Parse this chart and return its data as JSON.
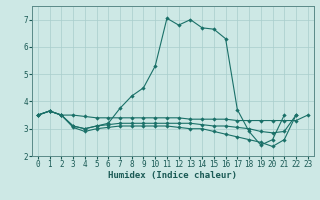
{
  "xlabel": "Humidex (Indice chaleur)",
  "bg_color": "#cde8e5",
  "grid_color": "#a8cecc",
  "line_color": "#1a7068",
  "xlim": [
    -0.5,
    23.5
  ],
  "ylim": [
    2.0,
    7.5
  ],
  "xticks": [
    0,
    1,
    2,
    3,
    4,
    5,
    6,
    7,
    8,
    9,
    10,
    11,
    12,
    13,
    14,
    15,
    16,
    17,
    18,
    19,
    20,
    21,
    22,
    23
  ],
  "yticks": [
    2,
    3,
    4,
    5,
    6,
    7
  ],
  "lines": [
    {
      "x": [
        0,
        1,
        2,
        3,
        4,
        5,
        6,
        7,
        8,
        9,
        10,
        11,
        12,
        13,
        14,
        15,
        16,
        17,
        18,
        19,
        20,
        21,
        22
      ],
      "y": [
        3.5,
        3.65,
        3.5,
        3.1,
        3.0,
        3.1,
        3.2,
        3.75,
        4.2,
        4.5,
        5.3,
        7.05,
        6.8,
        7.0,
        6.7,
        6.65,
        6.3,
        3.7,
        2.9,
        2.4,
        2.6,
        3.5,
        null
      ]
    },
    {
      "x": [
        0,
        1,
        2,
        3,
        4,
        5,
        6,
        7,
        8,
        9,
        10,
        11,
        12,
        13,
        14,
        15,
        16,
        17,
        18,
        19,
        20,
        21,
        22,
        23
      ],
      "y": [
        3.5,
        3.65,
        3.5,
        3.5,
        3.45,
        3.4,
        3.4,
        3.4,
        3.4,
        3.4,
        3.4,
        3.4,
        3.4,
        3.35,
        3.35,
        3.35,
        3.35,
        3.3,
        3.3,
        3.3,
        3.3,
        3.3,
        3.3,
        3.5
      ]
    },
    {
      "x": [
        0,
        1,
        2,
        3,
        4,
        5,
        6,
        7,
        8,
        9,
        10,
        11,
        12,
        13,
        14,
        15,
        16,
        17,
        18,
        19,
        20,
        21,
        22,
        23
      ],
      "y": [
        3.5,
        3.65,
        3.5,
        3.05,
        2.9,
        3.0,
        3.05,
        3.1,
        3.1,
        3.1,
        3.1,
        3.1,
        3.05,
        3.0,
        3.0,
        2.9,
        2.8,
        2.7,
        2.6,
        2.5,
        2.35,
        2.6,
        3.5,
        null
      ]
    },
    {
      "x": [
        0,
        1,
        2,
        3,
        4,
        5,
        6,
        7,
        8,
        9,
        10,
        11,
        12,
        13,
        14,
        15,
        16,
        17,
        18,
        19,
        20,
        21,
        22,
        23
      ],
      "y": [
        3.5,
        3.65,
        3.5,
        3.1,
        3.0,
        3.1,
        3.15,
        3.2,
        3.2,
        3.2,
        3.2,
        3.2,
        3.2,
        3.2,
        3.15,
        3.1,
        3.1,
        3.05,
        3.0,
        2.9,
        2.85,
        2.9,
        3.5,
        null
      ]
    }
  ]
}
